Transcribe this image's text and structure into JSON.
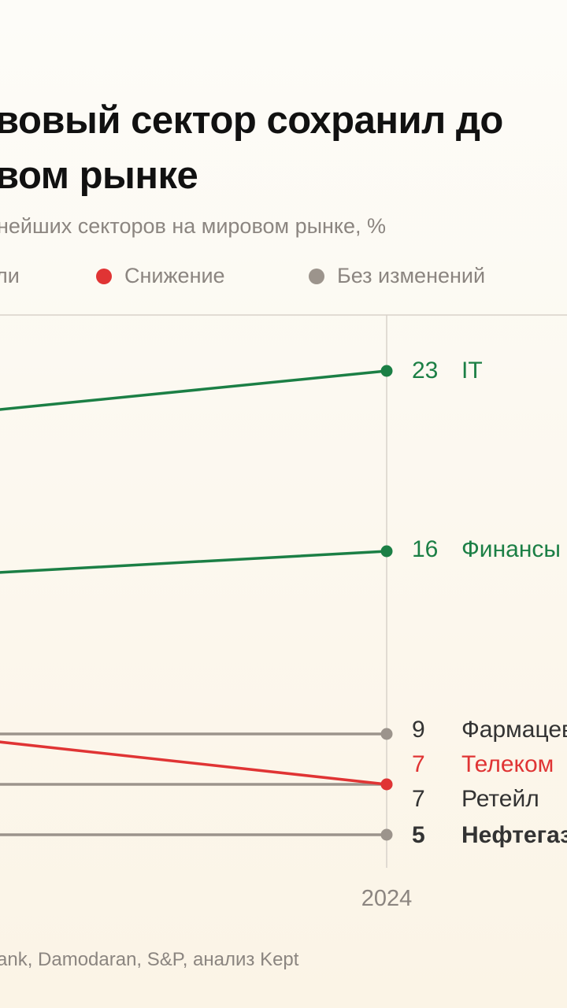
{
  "header": {
    "title_line1": "вовый сектор сохранил до",
    "title_line2": "вом рынке",
    "subtitle": "нейших секторов на мировом рынке, %"
  },
  "legend": [
    {
      "label": "ли",
      "color": "#1b7f45"
    },
    {
      "label": "Снижение",
      "color": "#e03434"
    },
    {
      "label": "Без изменений",
      "color": "#9c948c"
    }
  ],
  "source": "ank, Damodaran, S&P, анализ Kept",
  "colors": {
    "increase": "#1b7f45",
    "decrease": "#e03434",
    "unchanged": "#9c948c",
    "axis": "#d8d2ca",
    "text_dark": "#333333"
  },
  "chart_data": {
    "type": "line",
    "x": [
      "2024"
    ],
    "x_labels": [
      "2024"
    ],
    "series": [
      {
        "name": "IT",
        "value_2024": 23,
        "label": "23",
        "status": "increase",
        "bold": false
      },
      {
        "name": "Финансы",
        "value_2024": 16,
        "label": "16",
        "status": "increase",
        "bold": false
      },
      {
        "name": "Фармацевтика",
        "value_2024": 9,
        "label": "9",
        "status": "unchanged",
        "bold": false
      },
      {
        "name": "Телеком",
        "value_2024": 7,
        "label": "7",
        "status": "decrease",
        "bold": false
      },
      {
        "name": "Ретейл",
        "value_2024": 7,
        "label": "7",
        "status": "unchanged",
        "bold": false
      },
      {
        "name": "Нефтегаз",
        "value_2024": 5,
        "label": "5",
        "status": "unchanged",
        "bold": true
      }
    ]
  }
}
